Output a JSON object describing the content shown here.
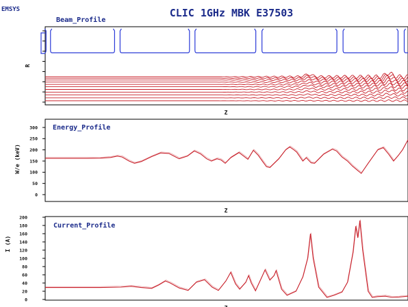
{
  "app": {
    "brand": "EMSYS",
    "title": "CLIC 1GHz MBK E37503"
  },
  "chart_data": [
    {
      "type": "line",
      "title": "Beam_Profile",
      "xlabel": "Z",
      "ylabel": "R",
      "xlim": [
        0,
        528
      ],
      "ylim": [
        0,
        1
      ],
      "y_ticks": [
        "",
        "",
        "",
        "",
        "",
        "",
        "",
        ""
      ],
      "grid": false,
      "legend": "none",
      "colors": {
        "cavity": "#2a3ad8",
        "trajectory": "#c8202a"
      },
      "cavity_gaps": [
        {
          "z": 4.5,
          "gap": 6.5
        },
        {
          "z": 105,
          "gap": 8
        },
        {
          "z": 214,
          "gap": 8
        },
        {
          "z": 311,
          "gap": 9
        },
        {
          "z": 429,
          "gap": 9
        },
        {
          "z": 518,
          "gap": 9
        }
      ],
      "beam_radii": [
        0.035,
        0.11,
        0.185,
        0.26,
        0.33,
        0.4,
        0.46,
        0.52,
        0.575,
        0.62,
        0.66
      ]
    },
    {
      "type": "line",
      "title": "Energy_Profile",
      "xlabel": "Z",
      "ylabel": "W/e (keV)",
      "xlim": [
        0,
        528
      ],
      "ylim": [
        0,
        300
      ],
      "y_ticks": [
        "0",
        "50",
        "100",
        "150",
        "200",
        "250",
        "300"
      ],
      "grid": false,
      "legend": "none",
      "series": [
        {
          "name": "",
          "color": "#c8202a",
          "points": [
            [
              0,
              162
            ],
            [
              60,
              162
            ],
            [
              80,
              163
            ],
            [
              95,
              166
            ],
            [
              105,
              172
            ],
            [
              112,
              168
            ],
            [
              122,
              150
            ],
            [
              130,
              140
            ],
            [
              140,
              148
            ],
            [
              155,
              170
            ],
            [
              168,
              186
            ],
            [
              180,
              184
            ],
            [
              195,
              160
            ],
            [
              207,
              172
            ],
            [
              217,
              195
            ],
            [
              226,
              182
            ],
            [
              235,
              160
            ],
            [
              242,
              150
            ],
            [
              250,
              160
            ],
            [
              256,
              155
            ],
            [
              262,
              140
            ],
            [
              270,
              165
            ],
            [
              282,
              188
            ],
            [
              295,
              158
            ],
            [
              303,
              198
            ],
            [
              310,
              176
            ],
            [
              316,
              150
            ],
            [
              322,
              125
            ],
            [
              327,
              121
            ],
            [
              340,
              160
            ],
            [
              350,
              200
            ],
            [
              356,
              213
            ],
            [
              362,
              200
            ],
            [
              366,
              190
            ],
            [
              375,
              150
            ],
            [
              380,
              165
            ],
            [
              387,
              142
            ],
            [
              392,
              140
            ],
            [
              405,
              180
            ],
            [
              418,
              203
            ],
            [
              424,
              195
            ],
            [
              432,
              168
            ],
            [
              440,
              150
            ],
            [
              447,
              128
            ],
            [
              454,
              110
            ],
            [
              460,
              95
            ],
            [
              470,
              140
            ],
            [
              484,
              200
            ],
            [
              492,
              210
            ],
            [
              500,
              180
            ],
            [
              507,
              150
            ],
            [
              514,
              175
            ],
            [
              520,
              200
            ],
            [
              528,
              245
            ]
          ]
        }
      ]
    },
    {
      "type": "line",
      "title": "Current_Profile",
      "xlabel": "Z",
      "ylabel": "I (A)",
      "xlim": [
        0,
        528
      ],
      "ylim": [
        0,
        200
      ],
      "y_ticks": [
        "0",
        "20",
        "40",
        "60",
        "80",
        "100",
        "120",
        "140",
        "160",
        "180",
        "200"
      ],
      "grid": false,
      "legend": "none",
      "series": [
        {
          "name": "",
          "color": "#c8202a",
          "points": [
            [
              0,
              29
            ],
            [
              40,
              29
            ],
            [
              80,
              29
            ],
            [
              110,
              30
            ],
            [
              125,
              32
            ],
            [
              140,
              29
            ],
            [
              155,
              27
            ],
            [
              165,
              35
            ],
            [
              175,
              45
            ],
            [
              182,
              40
            ],
            [
              195,
              28
            ],
            [
              208,
              22
            ],
            [
              220,
              42
            ],
            [
              232,
              48
            ],
            [
              243,
              30
            ],
            [
              252,
              22
            ],
            [
              263,
              45
            ],
            [
              270,
              66
            ],
            [
              277,
              38
            ],
            [
              283,
              25
            ],
            [
              292,
              42
            ],
            [
              296,
              58
            ],
            [
              300,
              40
            ],
            [
              306,
              21
            ],
            [
              314,
              50
            ],
            [
              320,
              72
            ],
            [
              327,
              47
            ],
            [
              333,
              58
            ],
            [
              336,
              70
            ],
            [
              344,
              25
            ],
            [
              352,
              10
            ],
            [
              365,
              20
            ],
            [
              375,
              55
            ],
            [
              382,
              100
            ],
            [
              386,
              160
            ],
            [
              390,
              100
            ],
            [
              398,
              30
            ],
            [
              410,
              5
            ],
            [
              420,
              10
            ],
            [
              432,
              18
            ],
            [
              440,
              42
            ],
            [
              448,
              115
            ],
            [
              452,
              178
            ],
            [
              455,
              150
            ],
            [
              458,
              192
            ],
            [
              462,
              120
            ],
            [
              470,
              20
            ],
            [
              476,
              5
            ],
            [
              484,
              7
            ],
            [
              495,
              8
            ],
            [
              505,
              5
            ],
            [
              515,
              6
            ],
            [
              528,
              8
            ]
          ]
        }
      ]
    }
  ]
}
